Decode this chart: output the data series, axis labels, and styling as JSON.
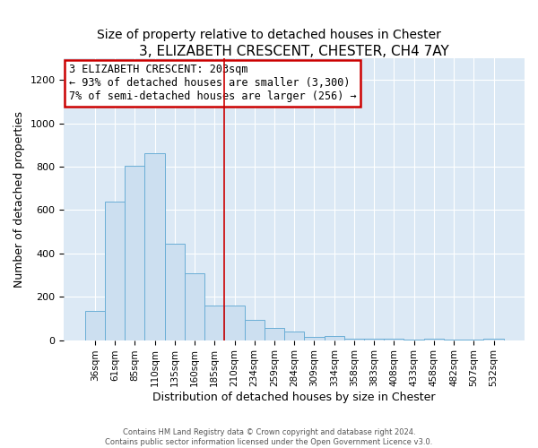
{
  "title": "3, ELIZABETH CRESCENT, CHESTER, CH4 7AY",
  "subtitle": "Size of property relative to detached houses in Chester",
  "xlabel": "Distribution of detached houses by size in Chester",
  "ylabel": "Number of detached properties",
  "bar_labels": [
    "36sqm",
    "61sqm",
    "85sqm",
    "110sqm",
    "135sqm",
    "160sqm",
    "185sqm",
    "210sqm",
    "234sqm",
    "259sqm",
    "284sqm",
    "309sqm",
    "334sqm",
    "358sqm",
    "383sqm",
    "408sqm",
    "433sqm",
    "458sqm",
    "482sqm",
    "507sqm",
    "532sqm"
  ],
  "bar_values": [
    135,
    640,
    805,
    860,
    445,
    310,
    160,
    160,
    95,
    55,
    40,
    15,
    20,
    8,
    8,
    8,
    2,
    8,
    2,
    2,
    5
  ],
  "bar_color": "#ccdff0",
  "bar_edge_color": "#6aaed6",
  "vline_x_index": 7,
  "annotation_line1": "3 ELIZABETH CRESCENT: 203sqm",
  "annotation_line2": "← 93% of detached houses are smaller (3,300)",
  "annotation_line3": "7% of semi-detached houses are larger (256) →",
  "annotation_box_color": "#ffffff",
  "annotation_box_edge_color": "#cc0000",
  "vline_color": "#cc0000",
  "ylim": [
    0,
    1300
  ],
  "yticks": [
    0,
    200,
    400,
    600,
    800,
    1000,
    1200
  ],
  "footer_line1": "Contains HM Land Registry data © Crown copyright and database right 2024.",
  "footer_line2": "Contains public sector information licensed under the Open Government Licence v3.0.",
  "fig_bg_color": "#ffffff",
  "plot_bg_color": "#dce9f5",
  "grid_color": "#ffffff",
  "title_fontsize": 11,
  "subtitle_fontsize": 10
}
